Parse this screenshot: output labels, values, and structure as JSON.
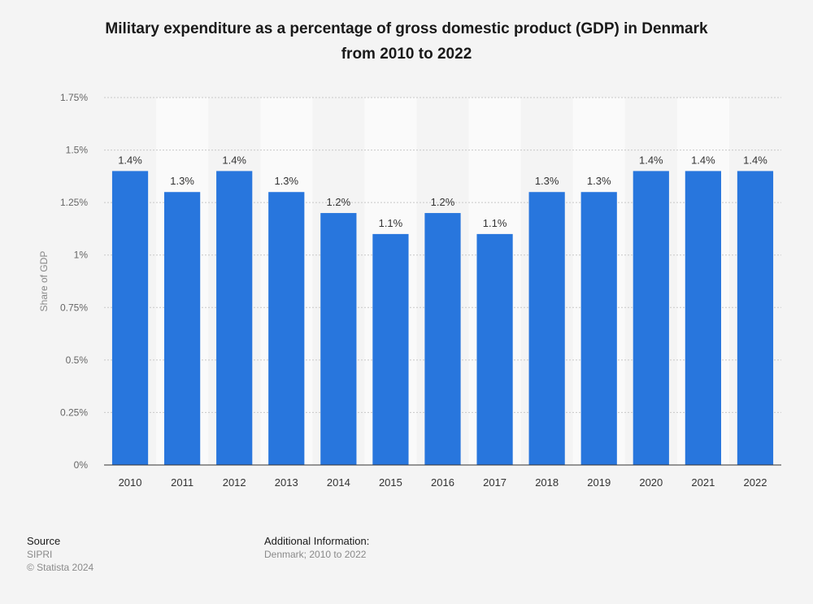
{
  "chart_data": {
    "type": "bar",
    "title_lines": [
      "Military expenditure as a percentage of gross domestic product (GDP) in Denmark",
      "from 2010 to 2022"
    ],
    "categories": [
      "2010",
      "2011",
      "2012",
      "2013",
      "2014",
      "2015",
      "2016",
      "2017",
      "2018",
      "2019",
      "2020",
      "2021",
      "2022"
    ],
    "values": [
      1.4,
      1.3,
      1.4,
      1.3,
      1.2,
      1.1,
      1.2,
      1.1,
      1.3,
      1.3,
      1.4,
      1.4,
      1.4
    ],
    "data_labels": [
      "1.4%",
      "1.3%",
      "1.4%",
      "1.3%",
      "1.2%",
      "1.1%",
      "1.2%",
      "1.1%",
      "1.3%",
      "1.3%",
      "1.4%",
      "1.4%",
      "1.4%"
    ],
    "ylabel": "Share of GDP",
    "xlabel": "",
    "ylim": [
      0,
      1.75
    ],
    "yticks": [
      0,
      0.25,
      0.5,
      0.75,
      1,
      1.25,
      1.5,
      1.75
    ],
    "ytick_labels": [
      "0%",
      "0.25%",
      "0.5%",
      "0.75%",
      "1%",
      "1.25%",
      "1.5%",
      "1.75%"
    ],
    "grid": true,
    "bar_color": "#2876dd"
  },
  "footer": {
    "source_heading": "Source",
    "source_name": "SIPRI",
    "copyright": "© Statista 2024",
    "info_heading": "Additional Information:",
    "info_text": "Denmark; 2010 to 2022"
  }
}
